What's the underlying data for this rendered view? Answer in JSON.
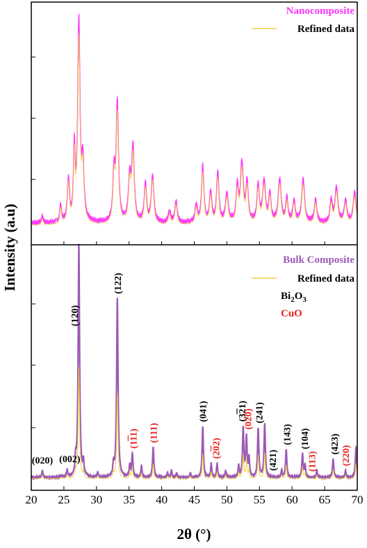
{
  "chart_data": {
    "type": "line",
    "xlabel": "2θ (°)",
    "ylabel": "Intensity (a.u)",
    "xlim": [
      20,
      70
    ],
    "xticks": [
      "20",
      "25",
      "30",
      "35",
      "40",
      "45",
      "50",
      "55",
      "60",
      "65",
      "70"
    ],
    "grid": false,
    "colors": {
      "nano": "#ff33ff",
      "bulk": "#9b59b6",
      "refined": "#f0d040",
      "bi2o3": "#000000",
      "cuo": "#e82020"
    },
    "panels": [
      {
        "id": "nano",
        "legend": [
          {
            "label": "Nanocomposite",
            "color": "#ff33ff"
          },
          {
            "label": "Refined data",
            "color": "#000000"
          }
        ],
        "baseline": 0.05,
        "peaks": [
          {
            "x": 21.7,
            "h": 0.03,
            "w": 0.15
          },
          {
            "x": 24.5,
            "h": 0.08,
            "w": 0.15
          },
          {
            "x": 25.7,
            "h": 0.2,
            "w": 0.18
          },
          {
            "x": 26.6,
            "h": 0.33,
            "w": 0.15
          },
          {
            "x": 27.3,
            "h": 0.93,
            "w": 0.2
          },
          {
            "x": 27.9,
            "h": 0.26,
            "w": 0.2
          },
          {
            "x": 32.7,
            "h": 0.22,
            "w": 0.2
          },
          {
            "x": 33.2,
            "h": 0.55,
            "w": 0.2
          },
          {
            "x": 35.1,
            "h": 0.2,
            "w": 0.22
          },
          {
            "x": 35.6,
            "h": 0.34,
            "w": 0.22
          },
          {
            "x": 37.5,
            "h": 0.18,
            "w": 0.2
          },
          {
            "x": 38.6,
            "h": 0.22,
            "w": 0.22
          },
          {
            "x": 41.2,
            "h": 0.05,
            "w": 0.2
          },
          {
            "x": 42.2,
            "h": 0.1,
            "w": 0.2
          },
          {
            "x": 45.3,
            "h": 0.08,
            "w": 0.2
          },
          {
            "x": 46.3,
            "h": 0.26,
            "w": 0.2
          },
          {
            "x": 47.5,
            "h": 0.14,
            "w": 0.2
          },
          {
            "x": 48.6,
            "h": 0.23,
            "w": 0.2
          },
          {
            "x": 50.0,
            "h": 0.13,
            "w": 0.25
          },
          {
            "x": 51.6,
            "h": 0.16,
            "w": 0.2
          },
          {
            "x": 52.3,
            "h": 0.27,
            "w": 0.25
          },
          {
            "x": 53.1,
            "h": 0.18,
            "w": 0.2
          },
          {
            "x": 54.8,
            "h": 0.17,
            "w": 0.2
          },
          {
            "x": 55.7,
            "h": 0.19,
            "w": 0.25
          },
          {
            "x": 56.6,
            "h": 0.13,
            "w": 0.2
          },
          {
            "x": 58.1,
            "h": 0.2,
            "w": 0.25
          },
          {
            "x": 59.2,
            "h": 0.11,
            "w": 0.2
          },
          {
            "x": 60.3,
            "h": 0.1,
            "w": 0.2
          },
          {
            "x": 61.7,
            "h": 0.2,
            "w": 0.25
          },
          {
            "x": 63.6,
            "h": 0.11,
            "w": 0.2
          },
          {
            "x": 66.0,
            "h": 0.1,
            "w": 0.2
          },
          {
            "x": 66.8,
            "h": 0.16,
            "w": 0.25
          },
          {
            "x": 68.2,
            "h": 0.1,
            "w": 0.25
          },
          {
            "x": 69.6,
            "h": 0.14,
            "w": 0.25
          }
        ]
      },
      {
        "id": "bulk",
        "legend": [
          {
            "label": "Bulk Composite",
            "color": "#9b59b6"
          },
          {
            "label": "Refined data",
            "color": "#000000"
          },
          {
            "label": "Bi",
            "sub": "2",
            "label2": "O",
            "sub2": "3",
            "color": "#000000"
          },
          {
            "label": "CuO",
            "color": "#e82020"
          }
        ],
        "baseline": 0.01,
        "peaks": [
          {
            "x": 21.7,
            "h": 0.03,
            "w": 0.1
          },
          {
            "x": 24.6,
            "h": 0.01,
            "w": 0.1
          },
          {
            "x": 25.5,
            "h": 0.03,
            "w": 0.1
          },
          {
            "x": 26.8,
            "h": 0.06,
            "w": 0.1
          },
          {
            "x": 27.3,
            "h": 1.0,
            "w": 0.13
          },
          {
            "x": 28.0,
            "h": 0.06,
            "w": 0.1
          },
          {
            "x": 30.2,
            "h": 0.02,
            "w": 0.1
          },
          {
            "x": 32.6,
            "h": 0.05,
            "w": 0.1
          },
          {
            "x": 33.2,
            "h": 0.77,
            "w": 0.13
          },
          {
            "x": 35.1,
            "h": 0.05,
            "w": 0.1
          },
          {
            "x": 35.5,
            "h": 0.1,
            "w": 0.12
          },
          {
            "x": 36.9,
            "h": 0.05,
            "w": 0.1
          },
          {
            "x": 38.7,
            "h": 0.13,
            "w": 0.12
          },
          {
            "x": 40.9,
            "h": 0.02,
            "w": 0.1
          },
          {
            "x": 41.5,
            "h": 0.03,
            "w": 0.1
          },
          {
            "x": 42.3,
            "h": 0.02,
            "w": 0.1
          },
          {
            "x": 44.4,
            "h": 0.02,
            "w": 0.1
          },
          {
            "x": 46.3,
            "h": 0.22,
            "w": 0.12
          },
          {
            "x": 47.6,
            "h": 0.06,
            "w": 0.1
          },
          {
            "x": 48.5,
            "h": 0.06,
            "w": 0.1
          },
          {
            "x": 49.8,
            "h": 0.03,
            "w": 0.1
          },
          {
            "x": 51.8,
            "h": 0.05,
            "w": 0.1
          },
          {
            "x": 52.5,
            "h": 0.21,
            "w": 0.12
          },
          {
            "x": 53.0,
            "h": 0.17,
            "w": 0.12
          },
          {
            "x": 53.4,
            "h": 0.08,
            "w": 0.1
          },
          {
            "x": 54.8,
            "h": 0.21,
            "w": 0.12
          },
          {
            "x": 55.8,
            "h": 0.23,
            "w": 0.12
          },
          {
            "x": 58.4,
            "h": 0.03,
            "w": 0.1
          },
          {
            "x": 59.1,
            "h": 0.12,
            "w": 0.12
          },
          {
            "x": 61.6,
            "h": 0.1,
            "w": 0.12
          },
          {
            "x": 62.0,
            "h": 0.05,
            "w": 0.1
          },
          {
            "x": 63.8,
            "h": 0.03,
            "w": 0.1
          },
          {
            "x": 66.3,
            "h": 0.08,
            "w": 0.12
          },
          {
            "x": 68.2,
            "h": 0.03,
            "w": 0.1
          },
          {
            "x": 69.8,
            "h": 0.13,
            "w": 0.12
          }
        ],
        "annotations": [
          {
            "x": 21.7,
            "label": "(020)",
            "phase": "Bi2O3",
            "vertical": false,
            "overbar": false
          },
          {
            "x": 25.9,
            "label": "(002)",
            "phase": "Bi2O3",
            "vertical": false,
            "overbar": false
          },
          {
            "x": 26.6,
            "label": "(120)",
            "phase": "Bi2O3",
            "vertical": true,
            "overbar": false
          },
          {
            "x": 33.2,
            "label": "(122)",
            "phase": "Bi2O3",
            "vertical": true,
            "overbar": false
          },
          {
            "x": 35.6,
            "label": "(111)",
            "phase": "CuO",
            "vertical": true,
            "overbar": true
          },
          {
            "x": 38.7,
            "label": "(111)",
            "phase": "CuO",
            "vertical": true,
            "overbar": false
          },
          {
            "x": 46.3,
            "label": "(041)",
            "phase": "Bi2O3",
            "vertical": true,
            "overbar": false
          },
          {
            "x": 48.3,
            "label": "(202)",
            "phase": "CuO",
            "vertical": true,
            "overbar": true
          },
          {
            "x": 52.3,
            "label": "(321)",
            "phase": "Bi2O3",
            "vertical": true,
            "overbar": true
          },
          {
            "x": 53.2,
            "label": "(020)",
            "phase": "CuO",
            "vertical": true,
            "overbar": false
          },
          {
            "x": 54.9,
            "label": "(241)",
            "phase": "Bi2O3",
            "vertical": true,
            "overbar": false
          },
          {
            "x": 57.0,
            "label": "(421)",
            "phase": "Bi2O3",
            "vertical": true,
            "overbar": false
          },
          {
            "x": 59.2,
            "label": "(143)",
            "phase": "Bi2O3",
            "vertical": true,
            "overbar": false
          },
          {
            "x": 61.9,
            "label": "(104)",
            "phase": "Bi2O3",
            "vertical": true,
            "overbar": false
          },
          {
            "x": 63.0,
            "label": "(113)",
            "phase": "CuO",
            "vertical": true,
            "overbar": false
          },
          {
            "x": 66.5,
            "label": "(423)",
            "phase": "Bi2O3",
            "vertical": true,
            "overbar": false
          },
          {
            "x": 68.2,
            "label": "(220)",
            "phase": "CuO",
            "vertical": true,
            "overbar": false
          }
        ]
      }
    ]
  }
}
